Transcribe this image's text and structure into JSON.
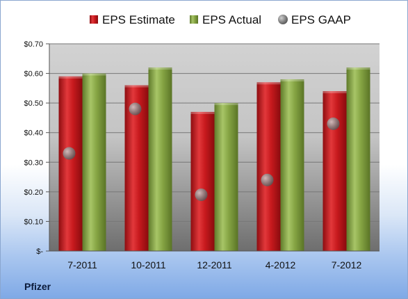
{
  "chart_data": {
    "type": "bar",
    "categories": [
      "7-2011",
      "10-2011",
      "12-2011",
      "4-2012",
      "7-2012"
    ],
    "series": [
      {
        "name": "EPS Estimate",
        "type": "bar",
        "values": [
          0.59,
          0.56,
          0.47,
          0.57,
          0.54
        ],
        "color": "#c0181c"
      },
      {
        "name": "EPS Actual",
        "type": "bar",
        "values": [
          0.6,
          0.62,
          0.5,
          0.58,
          0.62
        ],
        "color": "#7f9e3a"
      },
      {
        "name": "EPS GAAP",
        "type": "scatter",
        "values": [
          0.33,
          0.48,
          0.19,
          0.24,
          0.43
        ],
        "color": "#8e8e8e"
      }
    ],
    "ylim": [
      0,
      0.7
    ],
    "yticks": [
      0,
      0.1,
      0.2,
      0.3,
      0.4,
      0.5,
      0.6,
      0.7
    ],
    "ytick_labels": [
      "$-",
      "$0.10",
      "$0.20",
      "$0.30",
      "$0.40",
      "$0.50",
      "$0.60",
      "$0.70"
    ],
    "legend_position": "top",
    "grid": true
  },
  "footer": {
    "company": "Pfizer"
  }
}
